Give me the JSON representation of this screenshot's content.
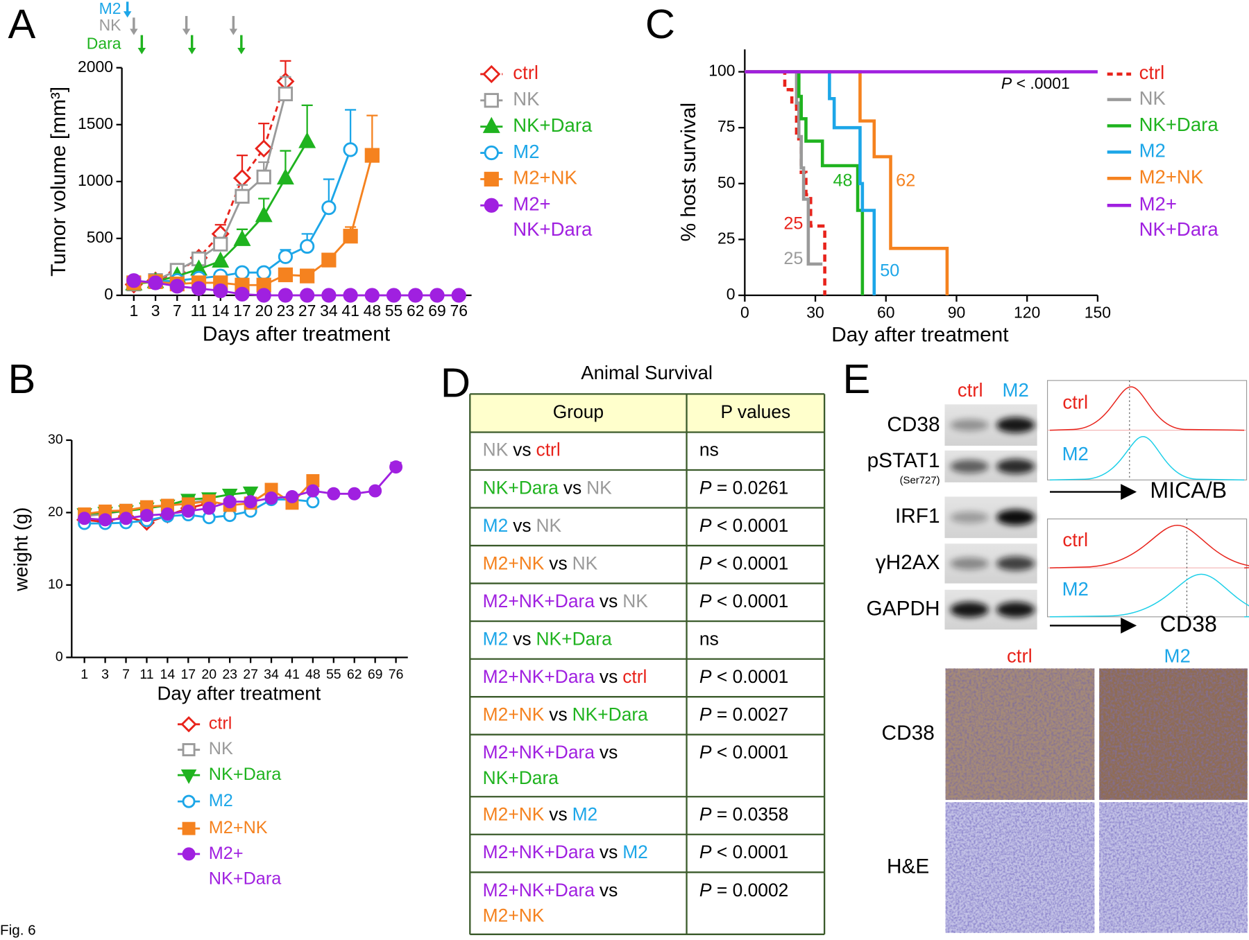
{
  "figure_label": "Fig. 6",
  "panel_labels": [
    "A",
    "B",
    "C",
    "D",
    "E"
  ],
  "chart_data": [
    {
      "type": "line",
      "y_label": "Tumor volume [mm³]",
      "x_label": "Days after treatment",
      "treatment_labels": [
        "M2",
        "NK",
        "Dara"
      ],
      "categories": [
        1,
        3,
        7,
        11,
        14,
        17,
        20,
        23,
        27,
        34,
        41,
        48,
        55,
        62,
        69,
        76
      ],
      "ylim": [
        0,
        2000
      ],
      "yticks": [
        0,
        500,
        1000,
        1500,
        2000
      ],
      "series": [
        {
          "name": "ctrl",
          "color": "#e8231b",
          "marker": "diamond-open",
          "dashed": true,
          "values": [
            95,
            130,
            200,
            330,
            540,
            1030,
            1290,
            1880,
            null,
            null,
            null,
            null,
            null,
            null,
            null,
            null
          ],
          "errors": [
            null,
            null,
            null,
            null,
            80,
            200,
            220,
            180,
            null,
            null,
            null,
            null,
            null,
            null,
            null,
            null
          ]
        },
        {
          "name": "NK",
          "color": "#9a9a9a",
          "marker": "square-open",
          "values": [
            100,
            130,
            220,
            320,
            450,
            870,
            1040,
            1770,
            null,
            null,
            null,
            null,
            null,
            null,
            null,
            null
          ],
          "errors": [
            null,
            null,
            null,
            null,
            null,
            100,
            130,
            150,
            null,
            null,
            null,
            null,
            null,
            null,
            null,
            null
          ]
        },
        {
          "name": "NK+Dara",
          "color": "#1fb31f",
          "marker": "triangle",
          "values": [
            100,
            120,
            170,
            230,
            300,
            490,
            700,
            1030,
            1350,
            null,
            null,
            null,
            null,
            null,
            null,
            null
          ],
          "errors": [
            null,
            null,
            null,
            null,
            null,
            90,
            150,
            240,
            320,
            null,
            null,
            null,
            null,
            null,
            null,
            null
          ]
        },
        {
          "name": "M2",
          "color": "#1ca6e8",
          "marker": "circle-open",
          "values": [
            120,
            120,
            130,
            150,
            170,
            200,
            200,
            340,
            430,
            770,
            1280,
            null,
            null,
            null,
            null,
            null
          ],
          "errors": [
            null,
            null,
            null,
            null,
            null,
            null,
            null,
            60,
            110,
            250,
            350,
            null,
            null,
            null,
            null,
            null
          ]
        },
        {
          "name": "M2+NK",
          "color": "#f5821f",
          "marker": "square",
          "values": [
            110,
            120,
            100,
            110,
            110,
            90,
            90,
            180,
            170,
            310,
            520,
            1230,
            null,
            null,
            null,
            null
          ],
          "errors": [
            null,
            null,
            null,
            null,
            null,
            null,
            null,
            null,
            null,
            null,
            80,
            350,
            null,
            null,
            null,
            null
          ]
        },
        {
          "name": "M2+NK+Dara",
          "color": "#a020e0",
          "marker": "circle",
          "values": [
            130,
            110,
            80,
            60,
            40,
            10,
            0,
            0,
            0,
            0,
            0,
            0,
            0,
            0,
            0,
            0
          ]
        }
      ]
    },
    {
      "type": "line",
      "y_label": "weight (g)",
      "x_label": "Day after treatment",
      "categories": [
        1,
        3,
        7,
        11,
        14,
        17,
        20,
        23,
        27,
        34,
        41,
        48,
        55,
        62,
        69,
        76
      ],
      "ylim": [
        0,
        30
      ],
      "yticks": [
        0,
        10,
        20,
        30
      ],
      "series": [
        {
          "name": "ctrl",
          "color": "#e8231b",
          "marker": "diamond-open",
          "values": [
            19,
            18.7,
            19.5,
            18.6,
            19.6,
            20.6,
            21.3,
            null,
            null,
            null,
            null,
            null,
            null,
            null,
            null,
            null
          ]
        },
        {
          "name": "NK",
          "color": "#9a9a9a",
          "marker": "square-open",
          "values": [
            19.5,
            19.8,
            20.3,
            20.6,
            21,
            21.3,
            21.8,
            null,
            null,
            null,
            null,
            null,
            null,
            null,
            null,
            null
          ]
        },
        {
          "name": "NK+Dara",
          "color": "#1fb31f",
          "marker": "triangle-down",
          "values": [
            19.8,
            20,
            20.2,
            20.6,
            21,
            21.8,
            22,
            22.5,
            22.8,
            null,
            null,
            null,
            null,
            null,
            null,
            null
          ]
        },
        {
          "name": "M2",
          "color": "#1ca6e8",
          "marker": "circle-open",
          "values": [
            18.5,
            18.5,
            18.6,
            18.9,
            19.5,
            19.7,
            19.3,
            19.6,
            20.2,
            21.8,
            21.8,
            21.5,
            null,
            null,
            null,
            null
          ]
        },
        {
          "name": "M2+NK",
          "color": "#f5821f",
          "marker": "square",
          "values": [
            19.8,
            20.2,
            20.3,
            20.8,
            21,
            21.2,
            21.6,
            21,
            21.3,
            23.2,
            21.3,
            24.4,
            null,
            null,
            null,
            null
          ]
        },
        {
          "name": "M2+NK+Dara",
          "color": "#a020e0",
          "marker": "circle",
          "values": [
            19.2,
            19,
            19.2,
            19.6,
            19.8,
            20.2,
            20.6,
            21.5,
            21.5,
            22,
            22.2,
            23,
            22.6,
            22.6,
            23,
            26.3
          ],
          "errors": [
            null,
            null,
            null,
            null,
            null,
            null,
            null,
            null,
            null,
            null,
            null,
            null,
            null,
            null,
            null,
            0.6
          ]
        }
      ]
    },
    {
      "type": "survival",
      "y_label": "% host survival",
      "x_label": "Day after treatment",
      "annotation": "P < .0001",
      "xlim": [
        0,
        150
      ],
      "xticks": [
        0,
        30,
        60,
        90,
        120,
        150
      ],
      "ylim": [
        0,
        110
      ],
      "yticks": [
        0,
        25,
        50,
        75,
        100
      ],
      "series": [
        {
          "name": "ctrl",
          "color": "#e8231b",
          "dashed": true,
          "median": 25,
          "x": [
            0,
            17,
            20,
            22,
            24,
            26,
            28,
            34
          ],
          "values": [
            100,
            92,
            85,
            70,
            55,
            45,
            31,
            0
          ]
        },
        {
          "name": "NK",
          "color": "#9a9a9a",
          "median": 25,
          "x": [
            0,
            22,
            23,
            24,
            25,
            27,
            33
          ],
          "values": [
            100,
            86,
            71,
            57,
            43,
            14,
            14
          ]
        },
        {
          "name": "NK+Dara",
          "color": "#1fb31f",
          "median": 48,
          "x": [
            0,
            23,
            24,
            26,
            33,
            48,
            50
          ],
          "values": [
            100,
            89,
            79,
            69,
            58,
            38,
            0
          ]
        },
        {
          "name": "M2",
          "color": "#1ca6e8",
          "median": 50,
          "x": [
            0,
            36,
            38,
            49,
            50,
            55,
            55
          ],
          "values": [
            100,
            88,
            75,
            50,
            38,
            38,
            0
          ]
        },
        {
          "name": "M2+NK",
          "color": "#f5821f",
          "median": 62,
          "x": [
            0,
            49,
            55,
            62,
            86
          ],
          "values": [
            100,
            78,
            62,
            21,
            0
          ]
        },
        {
          "name": "M2+NK+Dara",
          "color": "#a020e0",
          "x": [
            0,
            150
          ],
          "values": [
            100,
            100
          ]
        }
      ]
    }
  ],
  "table": {
    "title": "Animal Survival",
    "header": [
      "Group",
      "P values"
    ],
    "rows": [
      {
        "group": [
          "NK",
          "vs",
          "ctrl"
        ],
        "p": "ns"
      },
      {
        "group": [
          "NK+Dara",
          "vs",
          "NK"
        ],
        "p": "P = 0.0261"
      },
      {
        "group": [
          "M2",
          "vs",
          "NK"
        ],
        "p": "P < 0.0001"
      },
      {
        "group": [
          "M2+NK",
          "vs",
          "NK"
        ],
        "p": "P < 0.0001"
      },
      {
        "group": [
          "M2+NK+Dara",
          "vs",
          "NK"
        ],
        "p": "P < 0.0001"
      },
      {
        "group": [
          "M2",
          "vs",
          "NK+Dara"
        ],
        "p": "ns"
      },
      {
        "group": [
          "M2+NK+Dara",
          "vs",
          "ctrl"
        ],
        "p": "P < 0.0001"
      },
      {
        "group": [
          "M2+NK",
          "vs",
          "NK+Dara"
        ],
        "p": "P = 0.0027"
      },
      {
        "group": [
          "M2+NK+Dara",
          "vs",
          "NK+Dara"
        ],
        "p": "P < 0.0001"
      },
      {
        "group": [
          "M2+NK",
          "vs",
          "M2"
        ],
        "p": "P = 0.0358"
      },
      {
        "group": [
          "M2+NK+Dara",
          "vs",
          "M2"
        ],
        "p": "P < 0.0001"
      },
      {
        "group": [
          "M2+NK+Dara",
          "vs",
          "M2+NK"
        ],
        "p": "P = 0.0002"
      }
    ]
  },
  "western_blot": {
    "columns": [
      "ctrl",
      "M2"
    ],
    "rows": [
      "CD38",
      "pSTAT1",
      "IRF1",
      "γH2AX",
      "GAPDH"
    ],
    "row_note": "(Ser727)"
  },
  "flow": {
    "sample_labels": [
      "ctrl",
      "M2"
    ],
    "markers": [
      "MICA/B",
      "CD38"
    ]
  },
  "ihc": {
    "columns": [
      "ctrl",
      "M2"
    ],
    "rows": [
      "CD38",
      "H&E"
    ]
  }
}
